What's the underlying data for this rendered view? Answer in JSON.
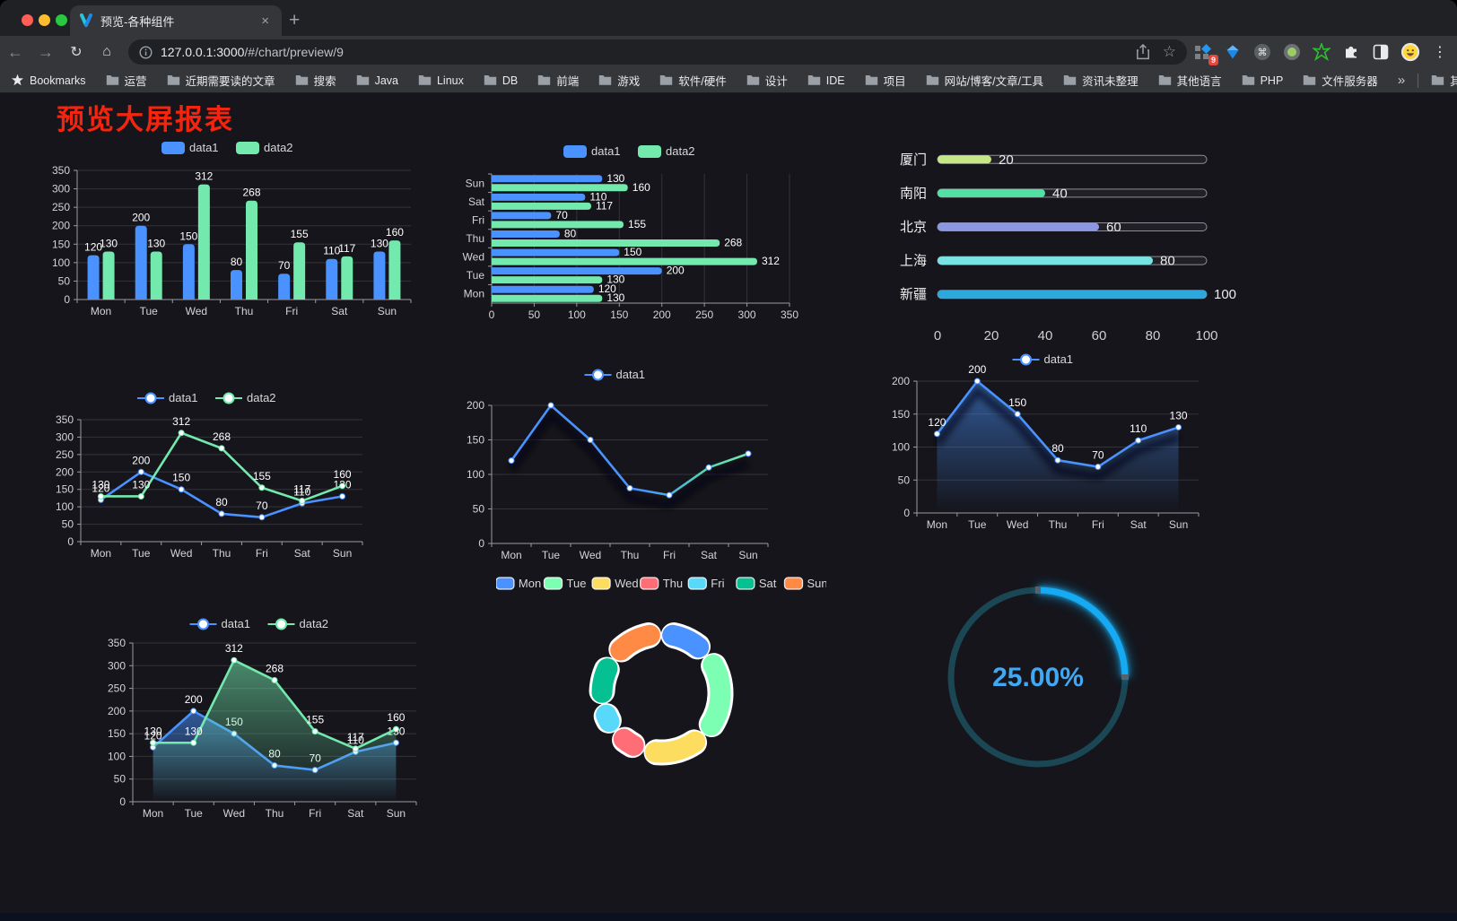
{
  "browser": {
    "tab": {
      "title": "预览-各种组件",
      "close_glyph": "×",
      "new_tab_glyph": "+"
    },
    "url_host": "127.0.0.1:3000",
    "url_path": "/#/chart/preview/9",
    "extension_badge": "9",
    "bookmarks_bar": {
      "bookmarks_label": "Bookmarks",
      "folders": [
        "运营",
        "近期需要读的文章",
        "搜索",
        "Java",
        "Linux",
        "DB",
        "前端",
        "游戏",
        "软件/硬件",
        "设计",
        "IDE",
        "项目",
        "网站/博客/文章/工具",
        "资讯未整理",
        "其他语言",
        "PHP",
        "文件服务器"
      ],
      "overflow_chevron": "»",
      "other_bookmarks": "其他书签"
    }
  },
  "page": {
    "title": "预览大屏报表",
    "title_color": "#f3250e",
    "background": "#15151b"
  },
  "chart_data": [
    {
      "id": "bar-grouped",
      "type": "bar",
      "categories": [
        "Mon",
        "Tue",
        "Wed",
        "Thu",
        "Fri",
        "Sat",
        "Sun"
      ],
      "series": [
        {
          "name": "data1",
          "color": "#4992ff",
          "values": [
            120,
            200,
            150,
            80,
            70,
            110,
            130
          ]
        },
        {
          "name": "data2",
          "color": "#73e9ae",
          "values": [
            130,
            130,
            312,
            268,
            155,
            117,
            160
          ]
        }
      ],
      "ylim": [
        0,
        350
      ],
      "ytick": 50,
      "grid": true,
      "legend_position": "top",
      "show_labels": true
    },
    {
      "id": "hbar-grouped",
      "type": "hbar",
      "categories": [
        "Sun",
        "Sat",
        "Fri",
        "Thu",
        "Wed",
        "Tue",
        "Mon"
      ],
      "series": [
        {
          "name": "data1",
          "color": "#4992ff",
          "values": [
            130,
            110,
            70,
            80,
            150,
            200,
            120
          ]
        },
        {
          "name": "data2",
          "color": "#73e9ae",
          "values": [
            160,
            117,
            155,
            268,
            312,
            130,
            130
          ]
        }
      ],
      "xlim": [
        0,
        350
      ],
      "xtick": 50,
      "grid": true,
      "legend_position": "top",
      "show_labels": true
    },
    {
      "id": "progress-cities",
      "type": "progress",
      "rows": [
        {
          "label": "厦门",
          "value": 20,
          "color": "#c6e786"
        },
        {
          "label": "南阳",
          "value": 40,
          "color": "#53e0a5"
        },
        {
          "label": "北京",
          "value": 60,
          "color": "#8b97e3"
        },
        {
          "label": "上海",
          "value": 80,
          "color": "#77e3e3"
        },
        {
          "label": "新疆",
          "value": 100,
          "color": "#2da8dc"
        }
      ],
      "xticks": [
        0,
        20,
        40,
        60,
        80,
        100
      ],
      "xlim": [
        0,
        100
      ]
    },
    {
      "id": "line-two-series",
      "type": "line",
      "categories": [
        "Mon",
        "Tue",
        "Wed",
        "Thu",
        "Fri",
        "Sat",
        "Sun"
      ],
      "series": [
        {
          "name": "data1",
          "color": "#4992ff",
          "values": [
            120,
            200,
            150,
            80,
            70,
            110,
            130
          ]
        },
        {
          "name": "data2",
          "color": "#73e9ae",
          "values": [
            130,
            130,
            312,
            268,
            155,
            117,
            160
          ]
        }
      ],
      "ylim": [
        0,
        350
      ],
      "ytick": 50,
      "grid": true,
      "legend_position": "top",
      "show_labels": true,
      "area": false
    },
    {
      "id": "line-gradient",
      "type": "line",
      "categories": [
        "Mon",
        "Tue",
        "Wed",
        "Thu",
        "Fri",
        "Sat",
        "Sun"
      ],
      "series": [
        {
          "name": "data1",
          "color": "#4992ff",
          "gradient_to": "#73e9ae",
          "values": [
            120,
            200,
            150,
            80,
            70,
            110,
            130
          ]
        }
      ],
      "ylim": [
        0,
        200
      ],
      "ytick": 50,
      "grid": true,
      "legend_position": "top",
      "show_labels": false,
      "area": false,
      "shadow": true
    },
    {
      "id": "line-area-single",
      "type": "line",
      "categories": [
        "Mon",
        "Tue",
        "Wed",
        "Thu",
        "Fri",
        "Sat",
        "Sun"
      ],
      "series": [
        {
          "name": "data1",
          "color": "#4992ff",
          "values": [
            120,
            200,
            150,
            80,
            70,
            110,
            130
          ]
        }
      ],
      "ylim": [
        0,
        200
      ],
      "ytick": 50,
      "grid": true,
      "legend_position": "top",
      "show_labels": true,
      "area": true,
      "shadow": true
    },
    {
      "id": "line-area-two-series",
      "type": "line",
      "categories": [
        "Mon",
        "Tue",
        "Wed",
        "Thu",
        "Fri",
        "Sat",
        "Sun"
      ],
      "series": [
        {
          "name": "data1",
          "color": "#4992ff",
          "values": [
            120,
            200,
            150,
            80,
            70,
            110,
            130
          ]
        },
        {
          "name": "data2",
          "color": "#73e9ae",
          "values": [
            130,
            130,
            312,
            268,
            155,
            117,
            160
          ]
        }
      ],
      "ylim": [
        0,
        350
      ],
      "ytick": 50,
      "grid": true,
      "legend_position": "top",
      "show_labels": true,
      "area": true
    },
    {
      "id": "donut-week",
      "type": "donut",
      "categories": [
        "Mon",
        "Tue",
        "Wed",
        "Thu",
        "Fri",
        "Sat",
        "Sun"
      ],
      "values": [
        120,
        200,
        150,
        80,
        70,
        110,
        130
      ],
      "colors": [
        "#4992ff",
        "#7cffb2",
        "#fddd60",
        "#ff6e76",
        "#58d9f9",
        "#05c091",
        "#ff8a45"
      ],
      "legend_position": "top"
    },
    {
      "id": "gauge-percent",
      "type": "gauge",
      "value": 25,
      "label": "25.00%",
      "color": "#17aaf2",
      "track_color": "#1b4654",
      "text_color": "#41a9f3"
    }
  ]
}
